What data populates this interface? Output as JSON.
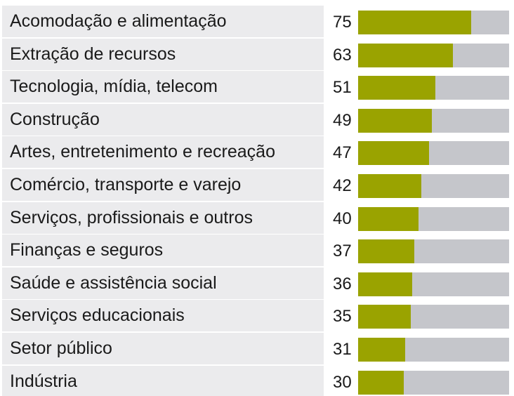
{
  "chart_data": {
    "type": "bar",
    "orientation": "horizontal",
    "categories": [
      "Acomodação e alimentação",
      "Extração de recursos",
      "Tecnologia, mídia, telecom",
      "Construção",
      "Artes, entretenimento e recreação",
      "Comércio, transporte e varejo",
      "Serviços, profissionais e outros",
      "Finanças e seguros",
      "Saúde e assistência social",
      "Serviços educacionais",
      "Setor público",
      "Indústria"
    ],
    "values": [
      75,
      63,
      51,
      49,
      47,
      42,
      40,
      37,
      36,
      35,
      31,
      30
    ],
    "xlim": [
      0,
      100
    ],
    "colors": {
      "bar": "#9aa300",
      "track": "#c5c6cb",
      "label_background": "#ebebed"
    },
    "grid": false
  }
}
